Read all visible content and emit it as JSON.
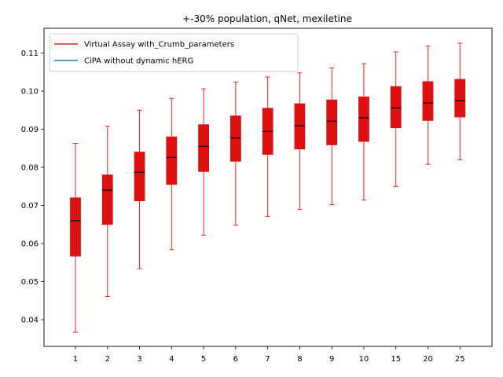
{
  "chart_data": {
    "type": "box",
    "title": "+-30% population, qNet, mexiletine",
    "xlabel": "",
    "ylabel": "",
    "ylim": [
      0.033,
      0.1165
    ],
    "yticks": [
      0.04,
      0.05,
      0.06,
      0.07,
      0.08,
      0.09,
      0.1,
      0.11
    ],
    "ytick_labels": [
      "0.04",
      "0.05",
      "0.06",
      "0.07",
      "0.08",
      "0.09",
      "0.10",
      "0.11"
    ],
    "categories": [
      "1",
      "2",
      "3",
      "4",
      "5",
      "6",
      "7",
      "8",
      "9",
      "10",
      "15",
      "20",
      "25"
    ],
    "legend": {
      "location": "top-left",
      "entries": [
        {
          "label": "Virtual Assay with_Crumb_parameters",
          "color": "#d62728"
        },
        {
          "label": "CiPA without dynamic hERG",
          "color": "#1f77b4"
        }
      ]
    },
    "box_color": "#dd1111",
    "median_color": "#000000",
    "series": [
      {
        "name": "Virtual Assay with_Crumb_parameters",
        "boxes": [
          {
            "min": 0.0367,
            "q1": 0.0567,
            "median": 0.066,
            "q3": 0.072,
            "max": 0.0863
          },
          {
            "min": 0.0461,
            "q1": 0.065,
            "median": 0.074,
            "q3": 0.078,
            "max": 0.0908
          },
          {
            "min": 0.0534,
            "q1": 0.0712,
            "median": 0.0787,
            "q3": 0.084,
            "max": 0.095
          },
          {
            "min": 0.0584,
            "q1": 0.0755,
            "median": 0.0826,
            "q3": 0.088,
            "max": 0.0981
          },
          {
            "min": 0.0622,
            "q1": 0.0789,
            "median": 0.0855,
            "q3": 0.0912,
            "max": 0.1006
          },
          {
            "min": 0.0648,
            "q1": 0.0816,
            "median": 0.0877,
            "q3": 0.0935,
            "max": 0.1024
          },
          {
            "min": 0.0671,
            "q1": 0.0834,
            "median": 0.0894,
            "q3": 0.0955,
            "max": 0.1037
          },
          {
            "min": 0.069,
            "q1": 0.0848,
            "median": 0.0909,
            "q3": 0.0967,
            "max": 0.1048
          },
          {
            "min": 0.0702,
            "q1": 0.0859,
            "median": 0.0921,
            "q3": 0.0977,
            "max": 0.1061
          },
          {
            "min": 0.0714,
            "q1": 0.0868,
            "median": 0.093,
            "q3": 0.0985,
            "max": 0.1072
          },
          {
            "min": 0.075,
            "q1": 0.0904,
            "median": 0.0956,
            "q3": 0.1012,
            "max": 0.1103
          },
          {
            "min": 0.0808,
            "q1": 0.0923,
            "median": 0.0969,
            "q3": 0.1025,
            "max": 0.1118
          },
          {
            "min": 0.082,
            "q1": 0.0932,
            "median": 0.0975,
            "q3": 0.1031,
            "max": 0.1126
          }
        ]
      }
    ],
    "grid": false
  }
}
